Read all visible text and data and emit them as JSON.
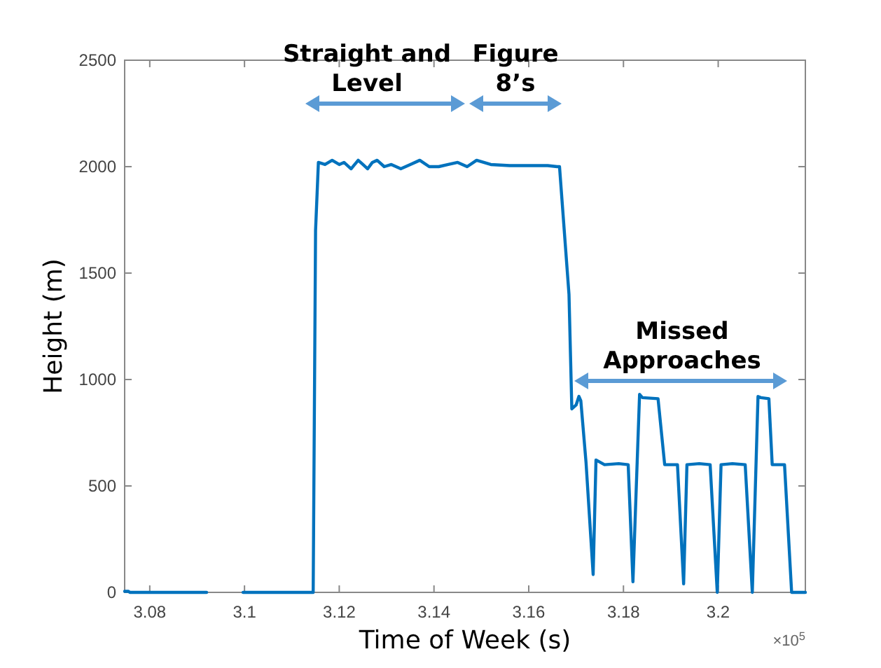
{
  "chart_data": {
    "type": "line",
    "xlabel": "Time of Week (s)",
    "ylabel": "Height (m)",
    "xlim": [
      3.0747,
      3.2184
    ],
    "xticks": [
      3.08,
      3.1,
      3.12,
      3.14,
      3.16,
      3.18,
      3.2
    ],
    "ylim": [
      0,
      2500
    ],
    "yticks": [
      0,
      500,
      1000,
      1500,
      2000,
      2500
    ],
    "grid": false,
    "marker": "none",
    "line_style": "solid",
    "series": [
      {
        "color": "#0072bd",
        "x": [
          3.0747,
          3.0755,
          3.0758,
          3.0765,
          3.0772,
          3.085,
          3.09,
          3.092,
          3.093,
          3.0997,
          3.102,
          3.1047,
          3.1059,
          3.11,
          3.1145,
          3.115,
          3.1156,
          3.117,
          3.1185,
          3.12,
          3.121,
          3.1225,
          3.124,
          3.125,
          3.126,
          3.127,
          3.128,
          3.1295,
          3.131,
          3.133,
          3.135,
          3.137,
          3.139,
          3.141,
          3.143,
          3.145,
          3.147,
          3.149,
          3.152,
          3.156,
          3.16,
          3.164,
          3.166,
          3.1665,
          3.1685,
          3.1691,
          3.17,
          3.1706,
          3.171,
          3.1721,
          3.1736,
          3.1742,
          3.176,
          3.179,
          3.181,
          3.182,
          3.1834,
          3.184,
          3.1873,
          3.1887,
          3.1914,
          3.1927,
          3.1934,
          3.196,
          3.1983,
          3.1998,
          3.2006,
          3.203,
          3.2057,
          3.2072,
          3.2084,
          3.209,
          3.2107,
          3.2114,
          3.214,
          3.2155,
          3.217,
          3.2184
        ],
        "values": [
          5,
          5,
          0,
          0,
          0,
          0,
          0,
          0,
          null,
          0,
          0,
          0,
          0,
          0,
          0,
          1700,
          2020,
          2010,
          2030,
          2010,
          2020,
          1990,
          2030,
          2010,
          1990,
          2020,
          2030,
          2000,
          2010,
          1990,
          2010,
          2030,
          2000,
          2000,
          2010,
          2020,
          2000,
          2030,
          2010,
          2005,
          2005,
          2005,
          2000,
          2000,
          1400,
          862,
          880,
          921,
          900,
          610,
          84,
          622,
          600,
          605,
          600,
          50,
          930,
          915,
          910,
          600,
          600,
          40,
          600,
          605,
          600,
          0,
          600,
          605,
          600,
          0,
          920,
          915,
          910,
          600,
          600,
          0,
          0,
          0
        ]
      }
    ],
    "annotations": [
      "Straight and\nLevel",
      "Figure\n8’s",
      "Missed\nApproaches",
      "×10$^{5}$"
    ]
  }
}
